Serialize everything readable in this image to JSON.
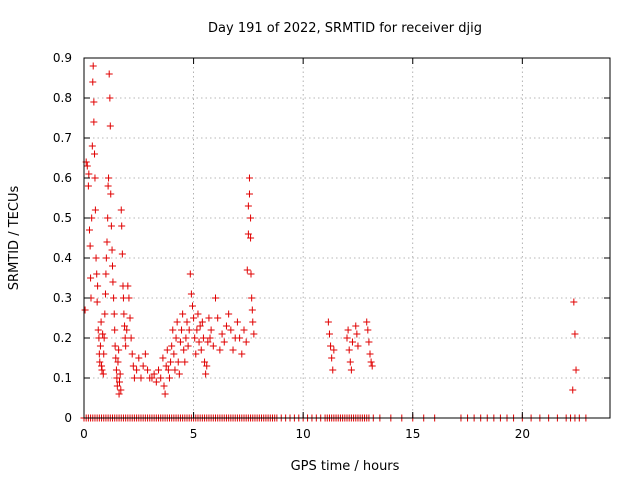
{
  "chart_data": {
    "type": "scatter",
    "title": "Day 191 of 2022, SRMTID for receiver djig",
    "xlabel": "GPS time / hours",
    "ylabel": "SRMTID / TECUs",
    "xlim": [
      0,
      24
    ],
    "ylim": [
      0,
      0.9
    ],
    "xticks": [
      0,
      5,
      10,
      15,
      20
    ],
    "xtick_labels": [
      "0",
      "5",
      "10",
      "15",
      "20"
    ],
    "yticks": [
      0,
      0.1,
      0.2,
      0.3,
      0.4,
      0.5,
      0.6,
      0.7,
      0.8,
      0.9
    ],
    "ytick_labels": [
      "0",
      "0.1",
      "0.2",
      "0.3",
      "0.4",
      "0.5",
      "0.6",
      "0.7",
      "0.8",
      "0.9"
    ],
    "grid": true,
    "marker": "+",
    "color": "#e00000",
    "series": [
      {
        "name": "SRMTID",
        "points": [
          [
            0.05,
            0.27
          ],
          [
            0.1,
            0.64
          ],
          [
            0.15,
            0.63
          ],
          [
            0.2,
            0.58
          ],
          [
            0.22,
            0.61
          ],
          [
            0.25,
            0.47
          ],
          [
            0.28,
            0.43
          ],
          [
            0.3,
            0.35
          ],
          [
            0.32,
            0.3
          ],
          [
            0.35,
            0.5
          ],
          [
            0.38,
            0.68
          ],
          [
            0.4,
            0.84
          ],
          [
            0.42,
            0.88
          ],
          [
            0.45,
            0.79
          ],
          [
            0.45,
            0.74
          ],
          [
            0.48,
            0.66
          ],
          [
            0.5,
            0.6
          ],
          [
            0.52,
            0.52
          ],
          [
            0.55,
            0.4
          ],
          [
            0.58,
            0.36
          ],
          [
            0.6,
            0.29
          ],
          [
            0.62,
            0.33
          ],
          [
            0.65,
            0.22
          ],
          [
            0.68,
            0.2
          ],
          [
            0.7,
            0.16
          ],
          [
            0.72,
            0.14
          ],
          [
            0.75,
            0.18
          ],
          [
            0.78,
            0.24
          ],
          [
            0.8,
            0.13
          ],
          [
            0.82,
            0.12
          ],
          [
            0.85,
            0.21
          ],
          [
            0.88,
            0.11
          ],
          [
            0.9,
            0.16
          ],
          [
            0.92,
            0.2
          ],
          [
            0.95,
            0.26
          ],
          [
            0.98,
            0.31
          ],
          [
            1.0,
            0.36
          ],
          [
            1.02,
            0.4
          ],
          [
            1.05,
            0.44
          ],
          [
            1.08,
            0.5
          ],
          [
            1.1,
            0.58
          ],
          [
            1.12,
            0.6
          ],
          [
            1.15,
            0.86
          ],
          [
            1.18,
            0.8
          ],
          [
            1.2,
            0.73
          ],
          [
            1.22,
            0.56
          ],
          [
            1.25,
            0.48
          ],
          [
            1.28,
            0.42
          ],
          [
            1.3,
            0.38
          ],
          [
            1.32,
            0.34
          ],
          [
            1.35,
            0.3
          ],
          [
            1.38,
            0.26
          ],
          [
            1.4,
            0.22
          ],
          [
            1.42,
            0.18
          ],
          [
            1.45,
            0.15
          ],
          [
            1.48,
            0.12
          ],
          [
            1.5,
            0.1
          ],
          [
            1.52,
            0.08
          ],
          [
            1.55,
            0.14
          ],
          [
            1.58,
            0.17
          ],
          [
            1.6,
            0.06
          ],
          [
            1.62,
            0.09
          ],
          [
            1.65,
            0.11
          ],
          [
            1.68,
            0.07
          ],
          [
            1.7,
            0.52
          ],
          [
            1.72,
            0.48
          ],
          [
            1.75,
            0.41
          ],
          [
            1.78,
            0.33
          ],
          [
            1.8,
            0.3
          ],
          [
            1.82,
            0.26
          ],
          [
            1.85,
            0.23
          ],
          [
            1.88,
            0.2
          ],
          [
            1.9,
            0.18
          ],
          [
            1.95,
            0.22
          ],
          [
            2.0,
            0.33
          ],
          [
            2.05,
            0.3
          ],
          [
            2.1,
            0.25
          ],
          [
            2.15,
            0.2
          ],
          [
            2.2,
            0.16
          ],
          [
            2.25,
            0.13
          ],
          [
            2.3,
            0.1
          ],
          [
            2.4,
            0.12
          ],
          [
            2.5,
            0.15
          ],
          [
            2.6,
            0.1
          ],
          [
            2.7,
            0.13
          ],
          [
            2.8,
            0.16
          ],
          [
            2.9,
            0.12
          ],
          [
            3.0,
            0.1
          ],
          [
            3.1,
            0.1
          ],
          [
            3.2,
            0.11
          ],
          [
            3.3,
            0.09
          ],
          [
            3.4,
            0.12
          ],
          [
            3.5,
            0.1
          ],
          [
            3.6,
            0.15
          ],
          [
            3.65,
            0.08
          ],
          [
            3.7,
            0.06
          ],
          [
            3.75,
            0.13
          ],
          [
            3.8,
            0.17
          ],
          [
            3.85,
            0.12
          ],
          [
            3.9,
            0.1
          ],
          [
            3.95,
            0.14
          ],
          [
            4.0,
            0.18
          ],
          [
            4.05,
            0.22
          ],
          [
            4.1,
            0.16
          ],
          [
            4.15,
            0.12
          ],
          [
            4.2,
            0.2
          ],
          [
            4.25,
            0.24
          ],
          [
            4.3,
            0.14
          ],
          [
            4.35,
            0.11
          ],
          [
            4.4,
            0.19
          ],
          [
            4.45,
            0.22
          ],
          [
            4.5,
            0.26
          ],
          [
            4.55,
            0.17
          ],
          [
            4.6,
            0.14
          ],
          [
            4.65,
            0.2
          ],
          [
            4.7,
            0.24
          ],
          [
            4.75,
            0.18
          ],
          [
            4.8,
            0.22
          ],
          [
            4.85,
            0.36
          ],
          [
            4.9,
            0.31
          ],
          [
            4.95,
            0.28
          ],
          [
            5.0,
            0.25
          ],
          [
            5.05,
            0.2
          ],
          [
            5.1,
            0.16
          ],
          [
            5.15,
            0.22
          ],
          [
            5.2,
            0.26
          ],
          [
            5.25,
            0.19
          ],
          [
            5.3,
            0.23
          ],
          [
            5.35,
            0.17
          ],
          [
            5.4,
            0.24
          ],
          [
            5.45,
            0.2
          ],
          [
            5.5,
            0.14
          ],
          [
            5.55,
            0.11
          ],
          [
            5.6,
            0.13
          ],
          [
            5.65,
            0.19
          ],
          [
            5.7,
            0.25
          ],
          [
            5.75,
            0.2
          ],
          [
            5.8,
            0.22
          ],
          [
            5.9,
            0.18
          ],
          [
            6.0,
            0.3
          ],
          [
            6.1,
            0.25
          ],
          [
            6.2,
            0.17
          ],
          [
            6.3,
            0.21
          ],
          [
            6.4,
            0.19
          ],
          [
            6.5,
            0.23
          ],
          [
            6.6,
            0.26
          ],
          [
            6.7,
            0.22
          ],
          [
            6.8,
            0.17
          ],
          [
            6.9,
            0.2
          ],
          [
            7.0,
            0.24
          ],
          [
            7.1,
            0.2
          ],
          [
            7.2,
            0.16
          ],
          [
            7.3,
            0.22
          ],
          [
            7.4,
            0.19
          ],
          [
            7.45,
            0.37
          ],
          [
            7.5,
            0.46
          ],
          [
            7.5,
            0.53
          ],
          [
            7.55,
            0.56
          ],
          [
            7.55,
            0.6
          ],
          [
            7.6,
            0.5
          ],
          [
            7.6,
            0.45
          ],
          [
            7.62,
            0.36
          ],
          [
            7.65,
            0.3
          ],
          [
            7.68,
            0.27
          ],
          [
            7.7,
            0.24
          ],
          [
            7.75,
            0.21
          ],
          [
            11.15,
            0.24
          ],
          [
            11.2,
            0.21
          ],
          [
            11.25,
            0.18
          ],
          [
            11.3,
            0.15
          ],
          [
            11.35,
            0.12
          ],
          [
            11.4,
            0.17
          ],
          [
            12.0,
            0.2
          ],
          [
            12.05,
            0.22
          ],
          [
            12.1,
            0.17
          ],
          [
            12.15,
            0.14
          ],
          [
            12.2,
            0.12
          ],
          [
            12.25,
            0.19
          ],
          [
            12.4,
            0.23
          ],
          [
            12.45,
            0.21
          ],
          [
            12.5,
            0.18
          ],
          [
            12.9,
            0.24
          ],
          [
            12.95,
            0.22
          ],
          [
            13.0,
            0.19
          ],
          [
            13.05,
            0.16
          ],
          [
            13.1,
            0.14
          ],
          [
            13.15,
            0.13
          ],
          [
            22.35,
            0.29
          ],
          [
            22.4,
            0.21
          ],
          [
            22.45,
            0.12
          ],
          [
            22.3,
            0.07
          ]
        ]
      }
    ],
    "zero_points_x": [
      0.0,
      0.1,
      0.2,
      0.3,
      0.4,
      0.5,
      0.6,
      0.7,
      0.8,
      0.9,
      1.0,
      1.1,
      1.2,
      1.3,
      1.4,
      1.5,
      1.6,
      1.7,
      1.8,
      1.9,
      2.0,
      2.1,
      2.2,
      2.3,
      2.4,
      2.5,
      2.6,
      2.7,
      2.8,
      2.9,
      3.0,
      3.1,
      3.2,
      3.3,
      3.4,
      3.5,
      3.6,
      3.7,
      3.8,
      3.9,
      4.0,
      4.1,
      4.2,
      4.3,
      4.4,
      4.5,
      4.6,
      4.7,
      4.8,
      4.9,
      5.0,
      5.1,
      5.2,
      5.3,
      5.4,
      5.5,
      5.6,
      5.7,
      5.8,
      5.9,
      6.0,
      6.1,
      6.2,
      6.3,
      6.4,
      6.5,
      6.6,
      6.7,
      6.8,
      6.9,
      7.0,
      7.1,
      7.2,
      7.3,
      7.4,
      7.5,
      7.6,
      7.7,
      7.8,
      7.9,
      8.0,
      8.1,
      8.2,
      8.3,
      8.4,
      8.5,
      8.6,
      8.7,
      8.8,
      9.0,
      9.2,
      9.4,
      9.6,
      9.8,
      10.0,
      10.2,
      10.4,
      10.6,
      10.8,
      11.0,
      11.1,
      11.2,
      11.3,
      11.4,
      11.5,
      11.6,
      11.7,
      11.8,
      11.9,
      12.0,
      12.1,
      12.2,
      12.3,
      12.4,
      12.5,
      12.6,
      12.7,
      12.8,
      12.9,
      13.0,
      13.2,
      13.5,
      14.0,
      14.5,
      15.0,
      15.5,
      16.0,
      17.2,
      17.5,
      17.8,
      18.1,
      18.4,
      18.7,
      19.0,
      19.3,
      19.6,
      20.0,
      20.4,
      20.8,
      21.2,
      21.6,
      22.0,
      22.2,
      22.4,
      22.6,
      22.9
    ]
  }
}
